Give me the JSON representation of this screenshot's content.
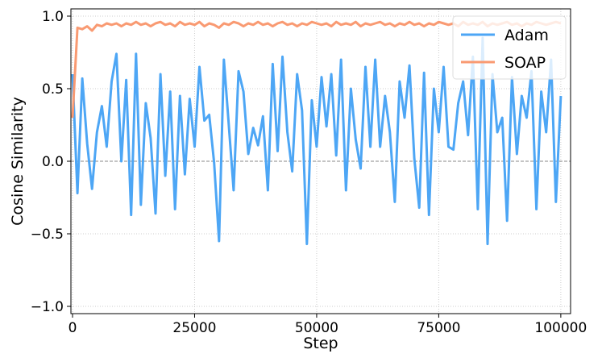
{
  "chart_data": {
    "type": "line",
    "x_label": "Step",
    "y_label": "Cosine Similarity",
    "x": [
      0,
      1000,
      2000,
      3000,
      4000,
      5000,
      6000,
      7000,
      8000,
      9000,
      10000,
      11000,
      12000,
      13000,
      14000,
      15000,
      16000,
      17000,
      18000,
      19000,
      20000,
      21000,
      22000,
      23000,
      24000,
      25000,
      26000,
      27000,
      28000,
      29000,
      30000,
      31000,
      32000,
      33000,
      34000,
      35000,
      36000,
      37000,
      38000,
      39000,
      40000,
      41000,
      42000,
      43000,
      44000,
      45000,
      46000,
      47000,
      48000,
      49000,
      50000,
      51000,
      52000,
      53000,
      54000,
      55000,
      56000,
      57000,
      58000,
      59000,
      60000,
      61000,
      62000,
      63000,
      64000,
      65000,
      66000,
      67000,
      68000,
      69000,
      70000,
      71000,
      72000,
      73000,
      74000,
      75000,
      76000,
      77000,
      78000,
      79000,
      80000,
      81000,
      82000,
      83000,
      84000,
      85000,
      86000,
      87000,
      88000,
      89000,
      90000,
      91000,
      92000,
      93000,
      94000,
      95000,
      96000,
      97000,
      98000,
      99000,
      100000
    ],
    "series": [
      {
        "name": "Adam",
        "color": "#4da6f5",
        "values": [
          0.6,
          -0.22,
          0.57,
          0.12,
          -0.19,
          0.2,
          0.38,
          0.1,
          0.55,
          0.74,
          0.0,
          0.56,
          -0.37,
          0.74,
          -0.3,
          0.4,
          0.16,
          -0.36,
          0.6,
          -0.1,
          0.48,
          -0.33,
          0.45,
          -0.09,
          0.43,
          0.1,
          0.65,
          0.28,
          0.32,
          -0.01,
          -0.55,
          0.7,
          0.25,
          -0.2,
          0.62,
          0.48,
          0.05,
          0.23,
          0.11,
          0.31,
          -0.2,
          0.67,
          0.07,
          0.72,
          0.2,
          -0.07,
          0.6,
          0.35,
          -0.57,
          0.42,
          0.1,
          0.58,
          0.24,
          0.6,
          0.04,
          0.7,
          -0.2,
          0.5,
          0.15,
          -0.05,
          0.65,
          0.1,
          0.7,
          0.1,
          0.45,
          0.2,
          -0.28,
          0.55,
          0.3,
          0.66,
          0.02,
          -0.32,
          0.61,
          -0.37,
          0.5,
          0.2,
          0.65,
          0.1,
          0.08,
          0.4,
          0.55,
          0.18,
          0.72,
          -0.33,
          0.85,
          -0.57,
          0.6,
          0.2,
          0.3,
          -0.41,
          0.58,
          0.05,
          0.45,
          0.3,
          0.62,
          -0.33,
          0.48,
          0.2,
          0.7,
          -0.28,
          0.45
        ]
      },
      {
        "name": "SOAP",
        "color": "#f99a72",
        "values": [
          0.3,
          0.92,
          0.91,
          0.93,
          0.9,
          0.94,
          0.93,
          0.95,
          0.94,
          0.95,
          0.93,
          0.95,
          0.94,
          0.96,
          0.94,
          0.95,
          0.93,
          0.95,
          0.96,
          0.94,
          0.95,
          0.93,
          0.96,
          0.94,
          0.95,
          0.94,
          0.96,
          0.93,
          0.95,
          0.94,
          0.92,
          0.95,
          0.94,
          0.96,
          0.95,
          0.93,
          0.95,
          0.94,
          0.96,
          0.94,
          0.95,
          0.93,
          0.95,
          0.96,
          0.94,
          0.95,
          0.93,
          0.95,
          0.94,
          0.96,
          0.95,
          0.94,
          0.95,
          0.93,
          0.96,
          0.94,
          0.95,
          0.94,
          0.96,
          0.93,
          0.95,
          0.94,
          0.95,
          0.96,
          0.94,
          0.95,
          0.93,
          0.95,
          0.94,
          0.96,
          0.94,
          0.95,
          0.93,
          0.95,
          0.94,
          0.96,
          0.95,
          0.94,
          0.95,
          0.93,
          0.96,
          0.94,
          0.95,
          0.94,
          0.96,
          0.93,
          0.95,
          0.94,
          0.95,
          0.96,
          0.94,
          0.95,
          0.93,
          0.95,
          0.94,
          0.96,
          0.95,
          0.94,
          0.95,
          0.96,
          0.95
        ]
      }
    ],
    "xlim": [
      -330,
      102000
    ],
    "ylim": [
      -1.05,
      1.05
    ],
    "xticks": [
      0,
      25000,
      50000,
      75000,
      100000
    ],
    "yticks": [
      {
        "value": -1,
        "label": "−1.0"
      },
      {
        "value": -0.5,
        "label": "−0.5"
      },
      {
        "value": 0,
        "label": "0.0"
      },
      {
        "value": 0.5,
        "label": "0.5"
      },
      {
        "value": 1,
        "label": "1.0"
      }
    ],
    "reference_line": 0,
    "grid": true,
    "legend": "upper right"
  }
}
